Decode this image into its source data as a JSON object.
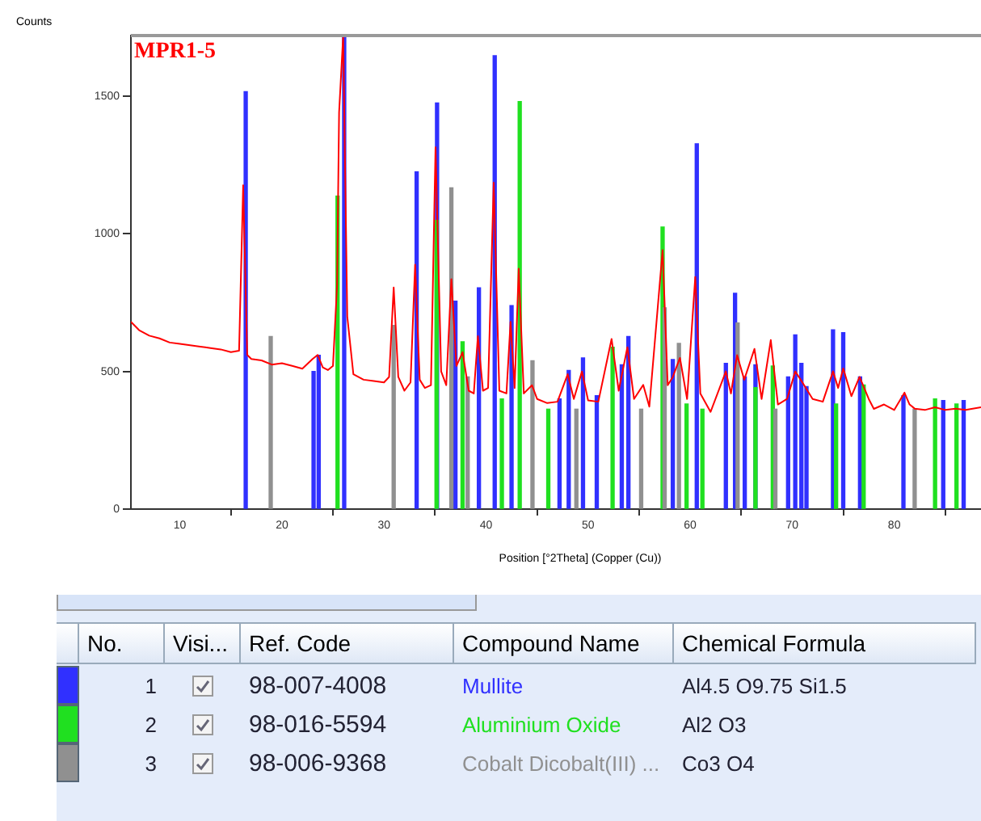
{
  "chart_data": {
    "type": "line",
    "xlabel": "Position [°2Theta] (Copper (Cu))",
    "ylabel": "Counts",
    "xlim": [
      5.2,
      88.5
    ],
    "xticks": [
      10,
      20,
      30,
      40,
      50,
      60,
      70,
      80
    ],
    "ylim": [
      0,
      1720
    ],
    "yticks": [
      0,
      500,
      1000,
      1500
    ],
    "grid": false,
    "marker": "none",
    "line_style": "solid",
    "legend": "bottom",
    "annotations": [
      "No.",
      "Visi...",
      "Ref. Code",
      "Compound Name",
      "Chemical Formula",
      "1",
      "98-007-4008",
      "Al4.5 O9.75 Si1.5",
      "2",
      "98-016-5594",
      "Al2 O3",
      "3",
      "98-006-9368",
      "Co3 O4"
    ],
    "series": [
      {
        "name": "MPR1-5",
        "color": "#ff0000",
        "x": [
          5.2,
          6,
          7,
          8,
          9,
          10,
          11,
          12,
          13,
          14,
          15,
          15.8,
          16.2,
          16.6,
          17,
          18,
          19,
          20,
          21,
          22,
          23,
          23.5,
          24,
          24.5,
          25,
          25.4,
          25.6,
          26.0,
          26.4,
          27,
          28,
          29,
          30,
          30.5,
          30.95,
          31.4,
          32,
          32.6,
          33.05,
          33.5,
          34,
          34.6,
          35.05,
          35.6,
          36.1,
          36.6,
          37.1,
          37.7,
          38.3,
          38.8,
          39.2,
          39.7,
          40.2,
          40.75,
          41.3,
          42,
          42.4,
          42.8,
          43.2,
          43.7,
          44.5,
          45,
          46,
          47,
          48,
          48.6,
          49.4,
          50,
          51,
          52.3,
          53,
          53.85,
          54.5,
          55.4,
          56,
          57.3,
          57.8,
          58.3,
          59.0,
          59.7,
          60.5,
          61,
          62,
          63.5,
          64,
          64.6,
          65.3,
          66.3,
          67,
          67.9,
          68.6,
          69.5,
          70.3,
          71,
          72,
          73,
          74,
          74.5,
          75,
          75.8,
          76.6,
          77.5,
          78,
          79,
          80,
          81,
          81.5,
          82,
          83,
          84,
          85,
          86,
          87,
          88.5
        ],
        "values": [
          680,
          650,
          630,
          620,
          605,
          600,
          595,
          590,
          585,
          580,
          570,
          575,
          1176,
          560,
          545,
          540,
          525,
          530,
          520,
          510,
          545,
          560,
          515,
          505,
          520,
          812,
          1441,
          1720,
          700,
          490,
          470,
          465,
          460,
          480,
          805,
          480,
          430,
          460,
          888,
          470,
          440,
          450,
          1314,
          500,
          450,
          835,
          520,
          570,
          430,
          420,
          628,
          430,
          440,
          1186,
          430,
          420,
          680,
          440,
          873,
          420,
          450,
          400,
          385,
          390,
          490,
          400,
          500,
          395,
          390,
          618,
          430,
          588,
          400,
          451,
          372,
          941,
          450,
          480,
          549,
          400,
          843,
          420,
          353,
          500,
          420,
          559,
          470,
          582,
          400,
          614,
          380,
          400,
          500,
          460,
          400,
          390,
          500,
          440,
          511,
          410,
          480,
          400,
          364,
          380,
          360,
          423,
          380,
          365,
          360,
          370,
          360,
          365,
          360,
          370
        ]
      },
      {
        "name": "Mullite",
        "type": "bar",
        "color": "#3030ff",
        "x": [
          16.45,
          23.1,
          23.6,
          26.1,
          33.2,
          35.2,
          37.0,
          39.3,
          40.85,
          42.5,
          47.2,
          48.1,
          49.5,
          50.85,
          53.3,
          53.95,
          58.3,
          60.65,
          63.5,
          64.4,
          65.35,
          66.4,
          69.6,
          70.3,
          70.9,
          71.4,
          74.0,
          75.0,
          76.65,
          80.9,
          84.8,
          86.8
        ],
        "values": [
          1516,
          500,
          559,
          1720,
          1225,
          1475,
          755,
          804,
          1647,
          739,
          400,
          504,
          549,
          412,
          524,
          627,
          543,
          1327,
          529,
          784,
          480,
          524,
          480,
          633,
          529,
          445,
          651,
          641,
          480,
          412,
          394,
          394
        ]
      },
      {
        "name": "Aluminium Oxide",
        "type": "bar",
        "color": "#20e020",
        "x": [
          25.45,
          35.15,
          37.7,
          41.55,
          43.3,
          46.1,
          52.4,
          57.3,
          59.65,
          61.2,
          66.4,
          68.1,
          74.3,
          77.0,
          84.0,
          86.1
        ],
        "values": [
          1137,
          1049,
          608,
          400,
          1480,
          363,
          588,
          1025,
          382,
          363,
          441,
          520,
          382,
          451,
          400,
          382
        ]
      },
      {
        "name": "Cobalt Dicobalt(III) ...",
        "type": "bar",
        "color": "#909090",
        "x": [
          18.9,
          30.95,
          36.6,
          38.2,
          44.55,
          48.85,
          55.2,
          57.5,
          58.9,
          64.65,
          68.35,
          82.0
        ],
        "values": [
          627,
          667,
          1167,
          480,
          539,
          363,
          363,
          731,
          602,
          676,
          363,
          363
        ]
      }
    ]
  }
}
